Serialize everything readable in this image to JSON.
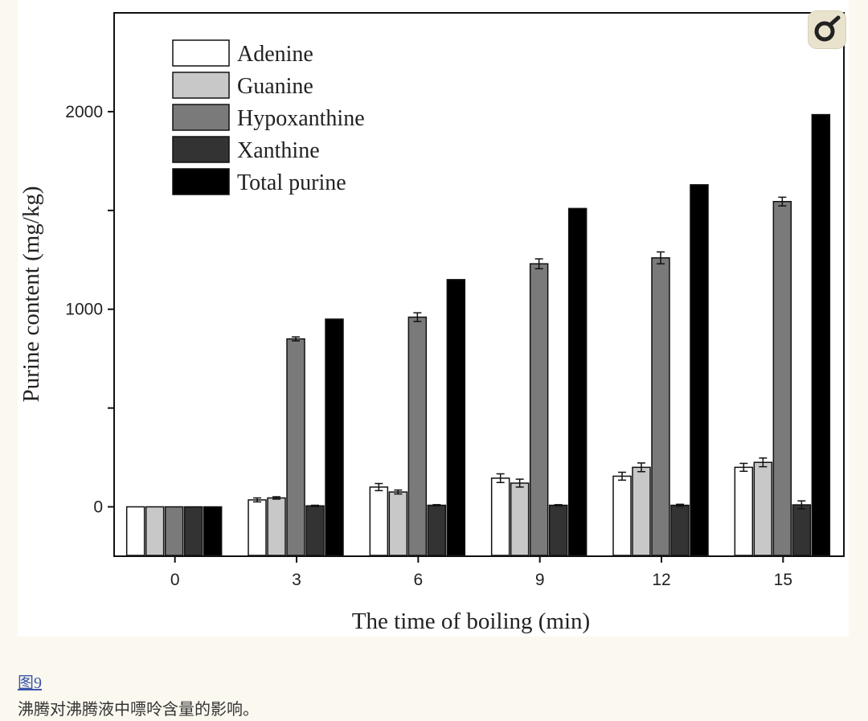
{
  "figure_link": "图9",
  "caption": "沸腾对沸腾液中嘌呤含量的影响。",
  "chart_data": {
    "type": "bar",
    "xlabel": "The time of boiling (min)",
    "ylabel": "Purine content (mg/kg)",
    "ylim": [
      -250,
      2500
    ],
    "yticks": [
      0,
      500,
      1000,
      1500,
      2000
    ],
    "ytick_labels": [
      "0",
      "",
      "1000",
      "",
      "2000"
    ],
    "categories": [
      "0",
      "3",
      "6",
      "9",
      "12",
      "15"
    ],
    "legend_position": "top-left",
    "series": [
      {
        "name": "Adenine",
        "color": "#ffffff",
        "values": [
          0,
          35,
          100,
          145,
          155,
          200
        ],
        "errors": [
          0,
          10,
          18,
          22,
          20,
          20
        ]
      },
      {
        "name": "Guanine",
        "color": "#c8c8c8",
        "values": [
          0,
          45,
          75,
          120,
          200,
          225
        ],
        "errors": [
          0,
          6,
          10,
          20,
          22,
          22
        ]
      },
      {
        "name": "Hypoxanthine",
        "color": "#7a7a7a",
        "values": [
          0,
          850,
          960,
          1230,
          1260,
          1545
        ],
        "errors": [
          0,
          10,
          22,
          25,
          30,
          22
        ]
      },
      {
        "name": "Xanthine",
        "color": "#333333",
        "values": [
          0,
          5,
          8,
          8,
          8,
          10
        ],
        "errors": [
          0,
          3,
          3,
          3,
          5,
          20
        ]
      },
      {
        "name": "Total purine",
        "color": "#000000",
        "values": [
          0,
          950,
          1150,
          1510,
          1630,
          1985
        ],
        "errors": [
          0,
          0,
          0,
          0,
          0,
          0
        ]
      }
    ]
  }
}
